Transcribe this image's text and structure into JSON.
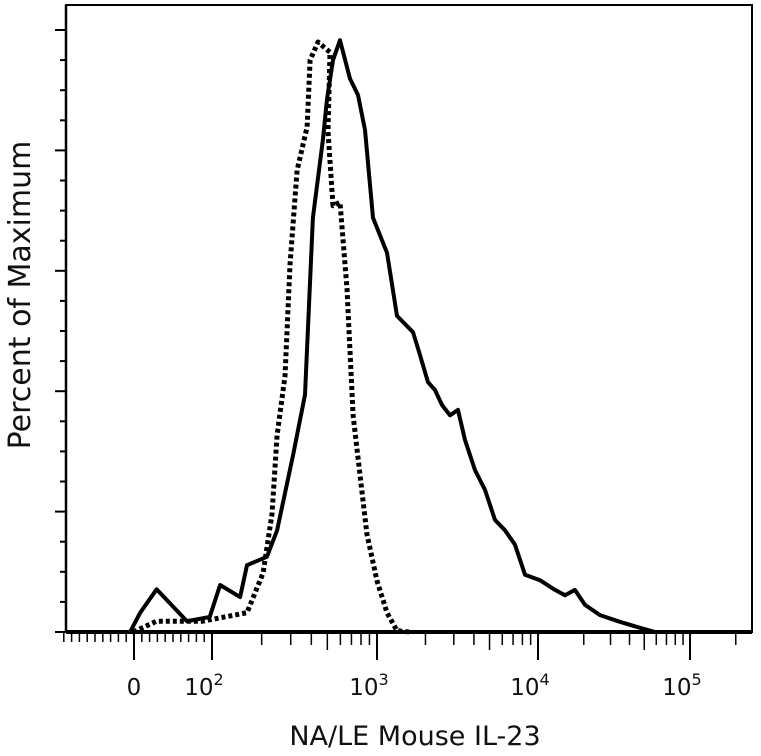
{
  "chart_data": {
    "type": "line",
    "title": "",
    "xlabel": "NA/LE Mouse IL-23",
    "ylabel": "Percent of Maximum",
    "x_scale": "biexponential",
    "x_ticks": [
      {
        "value": 0,
        "label": "0",
        "sup": ""
      },
      {
        "value": 100,
        "label": "10",
        "sup": "2"
      },
      {
        "value": 1000,
        "label": "10",
        "sup": "3"
      },
      {
        "value": 10000,
        "label": "10",
        "sup": "4"
      },
      {
        "value": 100000,
        "label": "10",
        "sup": "5"
      }
    ],
    "xlim": [
      -90,
      250000
    ],
    "ylim": [
      0,
      104
    ],
    "y_major_step": 20,
    "y_tick_labels_shown": false,
    "grid": false,
    "legend": "none",
    "series": [
      {
        "style": "solid",
        "color": "#000000",
        "x": [
          -5,
          8,
          29,
          68,
          97,
          112,
          148,
          163,
          215,
          248,
          310,
          366,
          409,
          471,
          498,
          541,
          597,
          686,
          767,
          846,
          946,
          1153,
          1331,
          1674,
          1849,
          2075,
          2293,
          2533,
          2840,
          3185,
          3521,
          4061,
          4686,
          5408,
          6240,
          7200,
          8300,
          10300,
          12940,
          15070,
          17500,
          20370,
          25580,
          34600,
          46900,
          58900
        ],
        "y": [
          0,
          3.2,
          7.1,
          1.8,
          2.5,
          7.8,
          5.8,
          11.1,
          12.5,
          16.9,
          29.4,
          39.4,
          68.8,
          81.9,
          88.5,
          95.0,
          98.3,
          91.9,
          89.2,
          83.4,
          68.8,
          63.0,
          52.5,
          49.8,
          46.0,
          41.5,
          40.2,
          37.7,
          36.0,
          36.9,
          31.9,
          26.9,
          23.6,
          18.6,
          16.9,
          14.5,
          9.5,
          8.6,
          7.0,
          6.1,
          7.0,
          4.5,
          2.8,
          1.7,
          0.7,
          0
        ]
      },
      {
        "style": "dotted",
        "color": "#000000",
        "x": [
          -1,
          29,
          88,
          163,
          204,
          231,
          248,
          277,
          297,
          328,
          377,
          393,
          439,
          519,
          505,
          541,
          597,
          658,
          716,
          789,
          869,
          1000,
          1153,
          1331,
          1600
        ],
        "y": [
          0,
          1.8,
          1.8,
          3.2,
          9.8,
          19.6,
          32.7,
          42.5,
          61.0,
          76.7,
          83.9,
          95.0,
          98.0,
          96.3,
          83.2,
          70.8,
          71.4,
          57.0,
          36.0,
          26.1,
          16.3,
          8.5,
          3.2,
          0.2,
          0
        ]
      }
    ]
  }
}
